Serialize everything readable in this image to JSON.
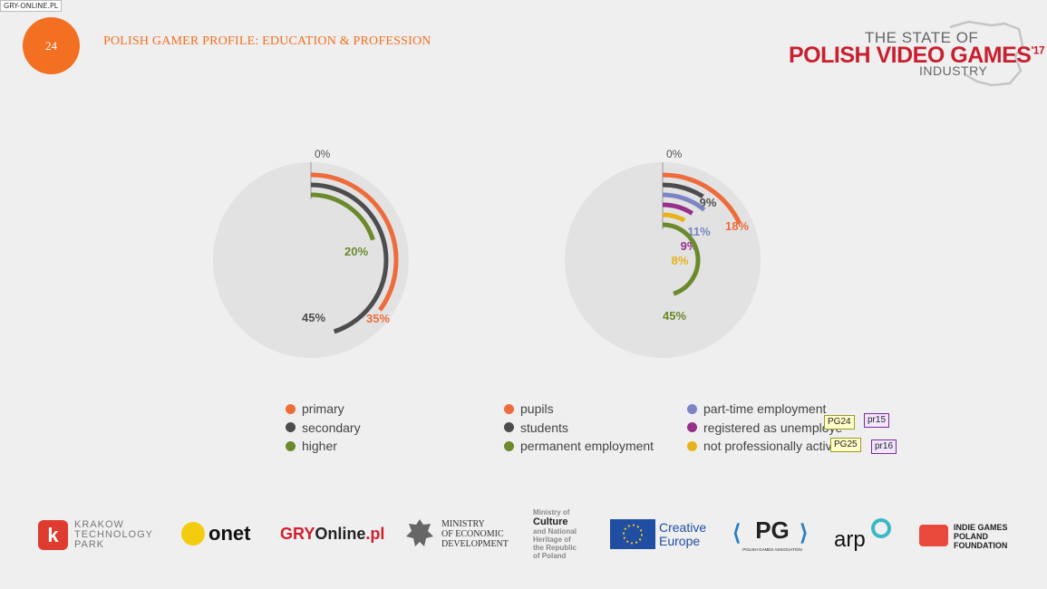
{
  "watermark": "GRY-ONLINE.PL",
  "page_number": "24",
  "title": "POLISH GAMER PROFILE: EDUCATION & PROFESSION",
  "brand": {
    "line1": "THE STATE OF",
    "line2": "POLISH VIDEO GAMES",
    "sup": "'17",
    "line3": "INDUSTRY",
    "color": "#c8202f"
  },
  "colors": {
    "orange": "#ee6c3c",
    "dark": "#4d4d4f",
    "green": "#6b8a2c",
    "blue": "#7b85c4",
    "purple": "#96308b",
    "yellow": "#e8b21a",
    "track": "#e2e2e2",
    "accent": "#f36f21"
  },
  "chart_data": [
    {
      "type": "radial-bar",
      "zero_label": "0%",
      "max_percent": 100,
      "series": [
        {
          "name": "primary",
          "value": 35,
          "label": "35%",
          "color": "#ee6c3c"
        },
        {
          "name": "secondary",
          "value": 45,
          "label": "45%",
          "color": "#4d4d4f"
        },
        {
          "name": "higher",
          "value": 20,
          "label": "20%",
          "color": "#6b8a2c"
        }
      ]
    },
    {
      "type": "radial-bar",
      "zero_label": "0%",
      "max_percent": 100,
      "series": [
        {
          "name": "pupils",
          "value": 18,
          "label": "18%",
          "color": "#ee6c3c"
        },
        {
          "name": "students",
          "value": 9,
          "label": "9%",
          "color": "#4d4d4f"
        },
        {
          "name": "part-time employment",
          "value": 11,
          "label": "11%",
          "color": "#7b85c4"
        },
        {
          "name": "registered as unemployed",
          "value": 9,
          "label": "9%",
          "color": "#96308b"
        },
        {
          "name": "not professionally active",
          "value": 8,
          "label": "8%",
          "color": "#e8b21a"
        },
        {
          "name": "permanent employment",
          "value": 45,
          "label": "45%",
          "color": "#6b8a2c"
        }
      ]
    }
  ],
  "legend1": [
    {
      "label": "primary",
      "color": "#ee6c3c"
    },
    {
      "label": "secondary",
      "color": "#4d4d4f"
    },
    {
      "label": "higher",
      "color": "#6b8a2c"
    }
  ],
  "legend2": [
    {
      "label": "pupils",
      "color": "#ee6c3c"
    },
    {
      "label": "students",
      "color": "#4d4d4f"
    },
    {
      "label": "permanent employment",
      "color": "#6b8a2c"
    }
  ],
  "legend3": [
    {
      "label": "part-time employment",
      "color": "#7b85c4"
    },
    {
      "label": "registered as unemploye",
      "color": "#96308b"
    },
    {
      "label": "not professionally active",
      "color": "#e8b21a"
    }
  ],
  "tags": {
    "pg24": "PG24",
    "pr15": "pr15",
    "pg25": "PG25",
    "pr16": "pr16"
  },
  "logos": {
    "krakow": [
      "KRAKOW",
      "TECHNOLOGY",
      "PARK"
    ],
    "onet": "onet",
    "gry": {
      "a": "GRY",
      "b": "Online",
      "c": ".pl"
    },
    "ministry": [
      "MINISTRY",
      "OF ECONOMIC",
      "DEVELOPMENT"
    ],
    "culture": [
      "Ministry of",
      "Culture",
      "and National",
      "Heritage of",
      "the Republic",
      "of Poland"
    ],
    "creative": [
      "Creative",
      "Europe"
    ],
    "pg": "PG",
    "pg_sub": "POLISH GAMES ASSOCIATION",
    "arp": "arp",
    "igpf": [
      "INDIE GAMES",
      "POLAND",
      "FOUNDATION"
    ]
  }
}
